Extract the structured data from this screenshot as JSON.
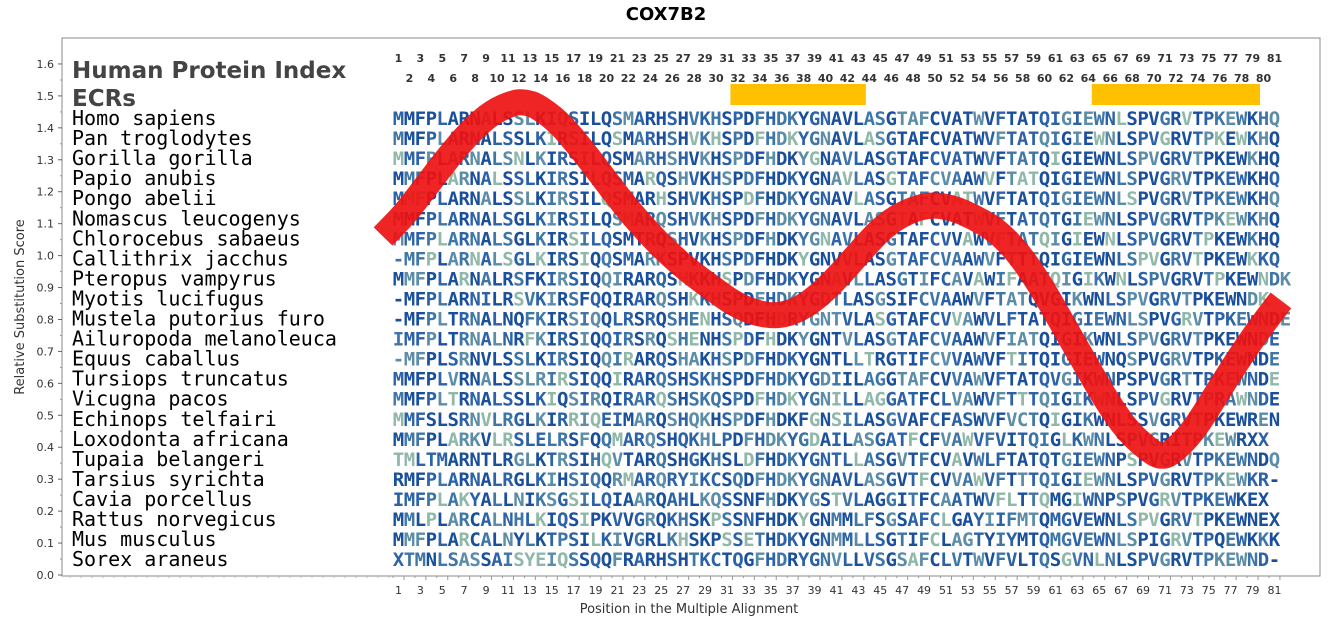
{
  "chart_data": {
    "type": "sequence-alignment",
    "title": "COX7B2",
    "xlabel": "Position in the Multiple Alignment",
    "ylabel": "Relative Substitution Score",
    "ylim": [
      0.0,
      1.65
    ],
    "yticks": [
      "0.0",
      "0.1",
      "0.2",
      "0.3",
      "0.4",
      "0.5",
      "0.6",
      "0.7",
      "0.8",
      "0.9",
      "1.0",
      "1.1",
      "1.2",
      "1.3",
      "1.4",
      "1.5",
      "1.6"
    ],
    "positions": 81,
    "bottom_ticks": [
      "1",
      "3",
      "5",
      "7",
      "9",
      "11",
      "13",
      "15",
      "17",
      "19",
      "21",
      "23",
      "25",
      "27",
      "29",
      "31",
      "33",
      "35",
      "37",
      "39",
      "41",
      "43",
      "45",
      "47",
      "49",
      "51",
      "53",
      "55",
      "57",
      "59",
      "61",
      "63",
      "65",
      "67",
      "69",
      "71",
      "73",
      "75",
      "77",
      "79",
      "81"
    ],
    "top_odd_ticks": [
      "1",
      "3",
      "5",
      "7",
      "9",
      "11",
      "13",
      "15",
      "17",
      "19",
      "21",
      "23",
      "25",
      "27",
      "29",
      "31",
      "33",
      "35",
      "37",
      "39",
      "41",
      "43",
      "45",
      "47",
      "49",
      "51",
      "53",
      "55",
      "57",
      "59",
      "61",
      "63",
      "65",
      "67",
      "69",
      "71",
      "73",
      "75",
      "77",
      "79",
      "81"
    ],
    "top_even_ticks": [
      "2",
      "4",
      "6",
      "8",
      "10",
      "12",
      "14",
      "16",
      "18",
      "20",
      "22",
      "24",
      "26",
      "28",
      "30",
      "32",
      "34",
      "36",
      "38",
      "40",
      "42",
      "44",
      "46",
      "48",
      "50",
      "52",
      "54",
      "56",
      "58",
      "60",
      "62",
      "64",
      "66",
      "68",
      "70",
      "72",
      "74",
      "76",
      "78",
      "80"
    ],
    "header_lines": [
      "Human Protein Index",
      "ECRs"
    ],
    "ecr_regions": [
      {
        "start": 32,
        "end": 43
      },
      {
        "start": 65,
        "end": 79
      }
    ],
    "ecr_color": "#ffc000",
    "curve_color": "#ee1111",
    "residue_colors": [
      "#1a4f9c",
      "#2c62a8",
      "#3f76a8",
      "#5b8ca8",
      "#8fb8a8"
    ],
    "curve": [
      {
        "x": 0,
        "y": 1.06
      },
      {
        "x": 2,
        "y": 1.13
      },
      {
        "x": 4,
        "y": 1.22
      },
      {
        "x": 6,
        "y": 1.31
      },
      {
        "x": 8,
        "y": 1.39
      },
      {
        "x": 10,
        "y": 1.45
      },
      {
        "x": 12,
        "y": 1.48
      },
      {
        "x": 13,
        "y": 1.48
      },
      {
        "x": 14,
        "y": 1.47
      },
      {
        "x": 16,
        "y": 1.42
      },
      {
        "x": 18,
        "y": 1.34
      },
      {
        "x": 20,
        "y": 1.25
      },
      {
        "x": 22,
        "y": 1.16
      },
      {
        "x": 24,
        "y": 1.08
      },
      {
        "x": 26,
        "y": 1.01
      },
      {
        "x": 28,
        "y": 0.95
      },
      {
        "x": 30,
        "y": 0.9
      },
      {
        "x": 32,
        "y": 0.85
      },
      {
        "x": 34,
        "y": 0.82
      },
      {
        "x": 36,
        "y": 0.81
      },
      {
        "x": 38,
        "y": 0.83
      },
      {
        "x": 40,
        "y": 0.88
      },
      {
        "x": 42,
        "y": 0.95
      },
      {
        "x": 44,
        "y": 1.03
      },
      {
        "x": 46,
        "y": 1.1
      },
      {
        "x": 48,
        "y": 1.14
      },
      {
        "x": 50,
        "y": 1.16
      },
      {
        "x": 52,
        "y": 1.15
      },
      {
        "x": 54,
        "y": 1.12
      },
      {
        "x": 56,
        "y": 1.08
      },
      {
        "x": 58,
        "y": 1.01
      },
      {
        "x": 60,
        "y": 0.91
      },
      {
        "x": 62,
        "y": 0.79
      },
      {
        "x": 64,
        "y": 0.67
      },
      {
        "x": 66,
        "y": 0.55
      },
      {
        "x": 68,
        "y": 0.45
      },
      {
        "x": 70,
        "y": 0.39
      },
      {
        "x": 71,
        "y": 0.37
      },
      {
        "x": 72,
        "y": 0.38
      },
      {
        "x": 74,
        "y": 0.45
      },
      {
        "x": 76,
        "y": 0.56
      },
      {
        "x": 78,
        "y": 0.67
      },
      {
        "x": 80,
        "y": 0.77
      },
      {
        "x": 82,
        "y": 0.86
      }
    ],
    "rows": [
      {
        "species": "Homo sapiens",
        "seq": "MMFPLARNALSSLKIQSILQSMARHSHVKHSPDFHDKYGNAVLASGTAFCVATWVFTATQIGIEWNLSPVGRVTPKEWKHQ"
      },
      {
        "species": "Pan troglodytes",
        "seq": "MMFPLARNALSSLKIRSILQSMARHSHVKHSPDFHDKYGNAVLASGTAFCVATWVFTATQIGIEWNLSPVGRVTPKEWKHQ"
      },
      {
        "species": "Gorilla gorilla",
        "seq": "MMFPLARNALSNLKIRSILQSMARHSHVKHSPDFHDKYGNAVLASGTAFCVATWVFTATQIGIEWNLSPVGRVTPKEWKHQ"
      },
      {
        "species": "Papio anubis",
        "seq": "MMFPLARNALSSLKIRSILQSMARQSHVKHSPDFHDKYGNAVLASGTAFCVAAWVFTATQIGIEWNLSPVGRVTPKEWKHQ"
      },
      {
        "species": "Pongo abelii",
        "seq": "MMFPLARNALSSLKIRSILQSMARHSHVKHSPDFHDKYGNAVLASGTAFCVATWVFTATQIGIEWNLSPVGRVTPKEWKHQ"
      },
      {
        "species": "Nomascus leucogenys",
        "seq": "MMFPLARNALSGLKIRSILQSMARQSHVKHSPDFHDKYGNAVLASGTAFCVATWVFTATQTGIEWNLSPVGRVTPKEWKHQ"
      },
      {
        "species": "Chlorocebus sabaeus",
        "seq": "MMFPLARNALSGLKIRSILQSMTRQSHVKHSPDFHDKYGNAVLASGTAFCVVAWVFTATQIGIEWNLSPVGRVTPKEWKHQ"
      },
      {
        "species": "Callithrix jacchus",
        "seq": "-MFPLARNALSGLKIRSIQQSMARKSPVKHSPDFHDKYGNVVLASGTAFCVAAWVFTTTQIGIEWNLSPVGRVTPKEWKKQ"
      },
      {
        "species": "Pteropus vampyrus",
        "seq": "MMFPLARNALRSFKIRSIQQIRARQSHKKHSPDFHDKYGNAVLLASGTIFCAVAWIFAATQIGIKWNLSPVGRVTPKEWNDK"
      },
      {
        "species": "Myotis lucifugus",
        "seq": "-MFPLARNILRSVKIRSFQQIRARQSHKKHSPDFHDKYGDTLASGSIFCVAAWVFTATQVGIKWNLSPVGRVTPKEWNDK"
      },
      {
        "species": "Mustela putorius furo",
        "seq": "-MFPLTRNALNQFKIRSIQQLRSRQSHENHSQDFHDRYGNTVLASGTAFCVVAWVLFTATQIGIEWNLSPVGRVTPKEWNDE"
      },
      {
        "species": "Ailuropoda melanoleuca",
        "seq": "IMFPLTRNALNRFKIRSIQQIRSRQSHENHSPDFHDKYGNTVLASGTAFCVAAWVFIATQIGIKWNLSPVGRVTPKEWNDE"
      },
      {
        "species": "Equus caballus",
        "seq": "-MFPLSRNVLSSLKIRSIQQIRARQSHAKHSPDFHDKYGNTLLTRGTIFCVVAWVFTITQIGIEWNQSPVGRVTPKEWNDE"
      },
      {
        "species": "Tursiops truncatus",
        "seq": "MMFPLVRNALSSLRIRSIQQIRARQSHSKHSPDFHDKYGDIILAGGTAFCVVAWVFTATQVGIKWNPSPVGRTTPKEWNDE"
      },
      {
        "species": "Vicugna pacos",
        "seq": "MMFPLTRNALSSLKIQSIRQIRARQSHSKQSPDFHDKYGNILLAGGATFCLVAWVFTTTQIGIKWNLSPVGRVTPRAWNDE"
      },
      {
        "species": "Echinops telfairi",
        "seq": "MMFSLSRNVLRGLKIRRIQEIMARQSHQKHSPDFHDKFGNSILASGVAFCFASWVFVCTQIGIKWNLSSVGRVTPKEWREN"
      },
      {
        "species": "Loxodonta africana",
        "seq": "MMFPLARKVLRSLELRSFQQMARQSHQKHLPDFHDKYGDAILASGATFCFVAWVFVITQIGLKWNLSPVGRITPKEWRXX"
      },
      {
        "species": "Tupaia belangeri",
        "seq": "TMLTMARNTLRGLKTRSIHQVTARQSHGKHSLDFHDKYGNTLLASGVTFCVAVWLFTATQTGIEWNPSPVGRVTPKEWNDQ"
      },
      {
        "species": "Tarsius syrichta",
        "seq": "RMFPLARNALRGLKIHSIQQRMARQRYIKCSQDFHDKYGNAVLASGVTFCVVAWVFTTTQIGIEWNLSPVGRVTPKEWKR-"
      },
      {
        "species": "Cavia porcellus",
        "seq": "IMFPLAKYALLNIKSGSILQIAARQAHLKQSSNFHDKYGSTVLAGGITFCAATWVFLTTQMGIWNPSPVGRVTPKEWKEX"
      },
      {
        "species": "Rattus norvegicus",
        "seq": "MMLPLARCALNHLKIQSIPKVVGRQKHSKPSSNFHDKYGNMMLFSGSAFCLGAYIIFMTQMGVEWNLSPVGRVTPKEWNEX"
      },
      {
        "species": "Mus musculus",
        "seq": "MMFPLARCALNYLKTPSILKIVGRLKHSKPSSETHDKYGNMMLLSGTIFCLAGTYIYMTQMGVEWNLSPIGRVTPQEWKKK"
      },
      {
        "species": "Sorex araneus",
        "seq": "XTMNLSASSAISYEIQSSQQFRARHSHTKCTQGFHDRYGNVLLVSGSAFCLVTWVFVLTQSGVNLNLSPVGRVTPKEWND-"
      }
    ]
  }
}
